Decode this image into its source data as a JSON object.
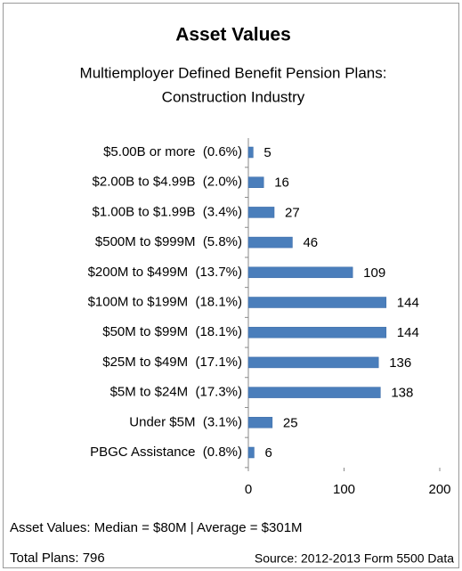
{
  "chart_data": {
    "type": "bar",
    "orientation": "horizontal",
    "title": "Asset Values",
    "subtitle": [
      "Multiemployer Defined Benefit Pension Plans:",
      "Construction Industry"
    ],
    "categories": [
      "$5.00B or more  (0.6%)",
      "$2.00B to $4.99B  (2.0%)",
      "$1.00B to $1.99B  (3.4%)",
      "$500M to $999M  (5.8%)",
      "$200M to $499M  (13.7%)",
      "$100M to $199M  (18.1%)",
      "$50M to $99M  (18.1%)",
      "$25M to $49M  (17.1%)",
      "$5M to $24M  (17.3%)",
      "Under $5M  (3.1%)",
      "PBGC Assistance  (0.8%)"
    ],
    "values": [
      5,
      16,
      27,
      46,
      109,
      144,
      144,
      136,
      138,
      25,
      6
    ],
    "color": "#4a7ebb",
    "xlim": [
      0,
      200
    ],
    "xticks": [
      0,
      100,
      200
    ],
    "grid": false,
    "annotations": [
      "Asset Values:  Median = $80M  |  Average = $301M",
      "Total Plans: 796",
      "Source: 2012-2013 Form 5500 Data"
    ]
  }
}
